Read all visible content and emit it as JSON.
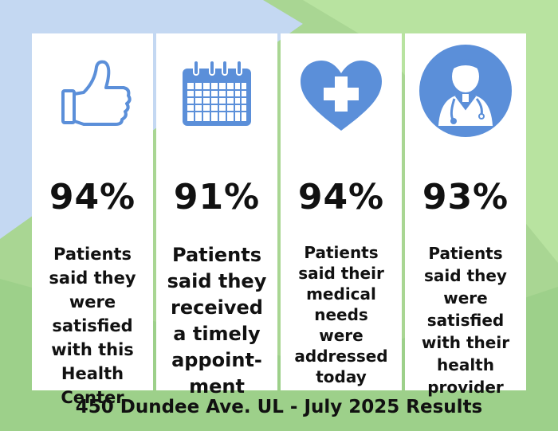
{
  "cards": [
    {
      "percent": "94%",
      "text": "Patients\nsaid they\nwere\nsatisfied\nwith this\nHealth\nCenter",
      "icon": "thumbs-up-icon"
    },
    {
      "percent": "91%",
      "text": "Patients\nsaid they\nreceived\na timely\nappoint-\nment",
      "icon": "calendar-icon"
    },
    {
      "percent": "94%",
      "text": "Patients\nsaid their\nmedical\nneeds\nwere\naddressed\ntoday",
      "icon": "heart-cross-icon"
    },
    {
      "percent": "93%",
      "text": "Patients\nsaid they\nwere\nsatisfied\nwith their\nhealth\nprovider",
      "icon": "doctor-icon"
    }
  ],
  "footer": "450 Dundee Ave. UL - July 2025 Results",
  "colors": {
    "icon": "#5b8fd9",
    "green_light": "#b8e3a0",
    "green": "#9dd08a",
    "blue_light": "#c4d8f2"
  }
}
